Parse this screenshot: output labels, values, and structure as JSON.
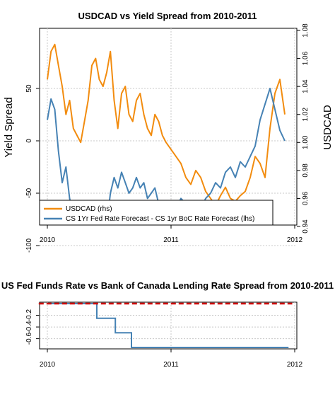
{
  "chart_data": [
    {
      "type": "line",
      "title": "USDCAD vs Yield Spread from 2010-2011",
      "ylabel_left": "Yield Spread",
      "ylabel_right": "USDCAD",
      "x_ticks": [
        "2010",
        "2011",
        "2012"
      ],
      "y_left_ticks": [
        "50",
        "0",
        "-50",
        "-100"
      ],
      "y_right_ticks": [
        "1.08",
        "1.06",
        "1.04",
        "1.02",
        "1.00",
        "0.98",
        "0.96",
        "0.94"
      ],
      "ylim_left": [
        -135,
        57
      ],
      "ylim_right": [
        0.94,
        1.08
      ],
      "grid": true,
      "legend_position": "bottom-left",
      "series": [
        {
          "name": "USDCAD (rhs)",
          "axis": "right",
          "color": "#F28C0F",
          "x": [
            2010.0,
            2010.03,
            2010.06,
            2010.09,
            2010.12,
            2010.15,
            2010.18,
            2010.21,
            2010.24,
            2010.27,
            2010.3,
            2010.33,
            2010.36,
            2010.39,
            2010.42,
            2010.45,
            2010.48,
            2010.51,
            2010.54,
            2010.57,
            2010.6,
            2010.63,
            2010.66,
            2010.69,
            2010.72,
            2010.75,
            2010.78,
            2010.81,
            2010.84,
            2010.87,
            2010.9,
            2010.93,
            2010.96,
            2011.0,
            2011.04,
            2011.08,
            2011.12,
            2011.16,
            2011.2,
            2011.24,
            2011.28,
            2011.32,
            2011.36,
            2011.4,
            2011.44,
            2011.48,
            2011.52,
            2011.56,
            2011.6,
            2011.64,
            2011.68,
            2011.72,
            2011.76,
            2011.8,
            2011.84,
            2011.88,
            2011.92
          ],
          "values": [
            1.045,
            1.065,
            1.07,
            1.055,
            1.04,
            1.02,
            1.03,
            1.01,
            1.005,
            1.0,
            1.015,
            1.03,
            1.055,
            1.06,
            1.045,
            1.04,
            1.05,
            1.065,
            1.03,
            1.01,
            1.035,
            1.04,
            1.02,
            1.015,
            1.03,
            1.035,
            1.02,
            1.01,
            1.005,
            1.02,
            1.015,
            1.005,
            1.0,
            0.995,
            0.99,
            0.985,
            0.975,
            0.97,
            0.98,
            0.975,
            0.965,
            0.96,
            0.955,
            0.962,
            0.968,
            0.96,
            0.958,
            0.962,
            0.965,
            0.975,
            0.99,
            0.985,
            0.975,
            1.01,
            1.035,
            1.045,
            1.02
          ]
        },
        {
          "name": "CS 1Yr Fed Rate Forecast - CS 1yr BoC Rate Forecast (lhs)",
          "axis": "left",
          "color": "#4682B4",
          "x": [
            2010.0,
            2010.03,
            2010.06,
            2010.09,
            2010.12,
            2010.15,
            2010.18,
            2010.21,
            2010.24,
            2010.27,
            2010.3,
            2010.33,
            2010.36,
            2010.39,
            2010.42,
            2010.45,
            2010.48,
            2010.51,
            2010.54,
            2010.57,
            2010.6,
            2010.63,
            2010.66,
            2010.69,
            2010.72,
            2010.75,
            2010.78,
            2010.81,
            2010.84,
            2010.87,
            2010.9,
            2010.93,
            2010.96,
            2011.0,
            2011.04,
            2011.08,
            2011.12,
            2011.16,
            2011.2,
            2011.24,
            2011.28,
            2011.32,
            2011.36,
            2011.4,
            2011.44,
            2011.48,
            2011.52,
            2011.56,
            2011.6,
            2011.64,
            2011.68,
            2011.72,
            2011.76,
            2011.8,
            2011.84,
            2011.88,
            2011.92
          ],
          "values": [
            20,
            40,
            30,
            -10,
            -40,
            -25,
            -55,
            -70,
            -95,
            -110,
            -100,
            -115,
            -120,
            -105,
            -125,
            -110,
            -80,
            -50,
            -35,
            -45,
            -30,
            -40,
            -50,
            -45,
            -35,
            -45,
            -40,
            -55,
            -50,
            -45,
            -60,
            -60,
            -65,
            -60,
            -65,
            -55,
            -60,
            -70,
            -60,
            -65,
            -55,
            -50,
            -40,
            -45,
            -30,
            -25,
            -35,
            -20,
            -25,
            -15,
            -5,
            20,
            35,
            50,
            30,
            10,
            0
          ]
        }
      ]
    },
    {
      "type": "line",
      "title": "US Fed Funds Rate vs Bank of Canada Lending Rate Spread from 2010-2011",
      "x_ticks": [
        "2010",
        "2011",
        "2012"
      ],
      "y_ticks": [
        "-0.2",
        "-0.4",
        "-0.6"
      ],
      "ylim": [
        -0.76,
        0.02
      ],
      "grid": true,
      "series": [
        {
          "color": "#4682B4",
          "x": [
            2010.0,
            2010.4,
            2010.4,
            2010.55,
            2010.55,
            2010.68,
            2010.68,
            2011.95
          ],
          "values": [
            0.0,
            0.0,
            -0.25,
            -0.25,
            -0.5,
            -0.5,
            -0.75,
            -0.75
          ]
        },
        {
          "color": "#CC0000",
          "dashed": true,
          "x": [
            2009.93,
            2011.98
          ],
          "values": [
            0.0,
            0.0
          ]
        }
      ]
    }
  ]
}
